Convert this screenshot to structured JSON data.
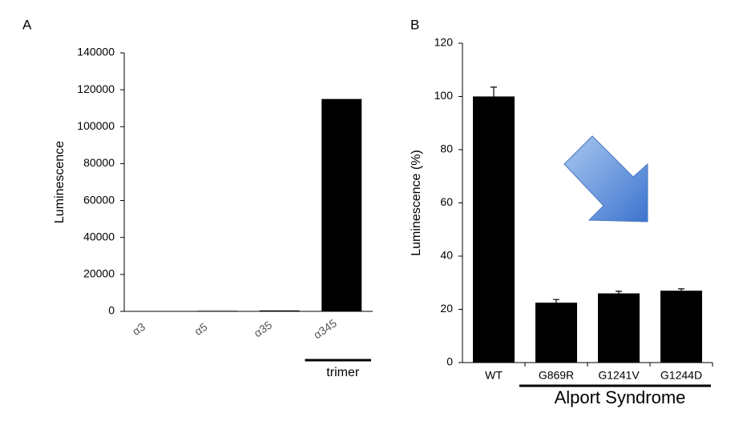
{
  "chart_data": [
    {
      "type": "bar",
      "panel_label": "A",
      "y_label": "Luminescence",
      "categories": [
        "α3",
        "α5",
        "α35",
        "α345"
      ],
      "values": [
        100,
        300,
        500,
        115000
      ],
      "color": "#000000",
      "ylim": [
        0,
        140000
      ],
      "yticks": [
        0,
        20000,
        40000,
        60000,
        80000,
        100000,
        120000,
        140000
      ],
      "annotation": "trimer"
    },
    {
      "type": "bar",
      "panel_label": "B",
      "y_label": "Luminescence  (%)",
      "categories": [
        "WT",
        "G869R",
        "G1241V",
        "G1244D"
      ],
      "values": [
        100,
        22.5,
        26,
        27
      ],
      "errors": [
        3.5,
        1.2,
        0.8,
        0.7
      ],
      "color": "#000000",
      "ylim": [
        0,
        120
      ],
      "yticks": [
        0,
        20,
        40,
        60,
        80,
        100,
        120
      ],
      "annotation": "Alport Syndrome"
    }
  ]
}
